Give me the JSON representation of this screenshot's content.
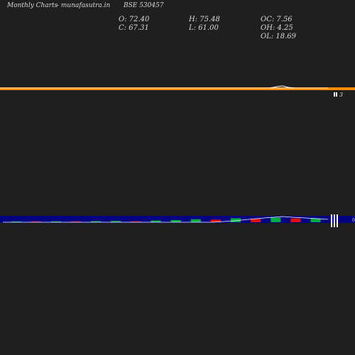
{
  "header": {
    "chart_kind": "Monthly Charts",
    "site": "- munafasutra.in",
    "symbol": "BSE 530457"
  },
  "ohlc": {
    "open": "O: 72.40",
    "close": "C: 67.31",
    "high": "H: 75.48",
    "low": "L: 61.00",
    "oc": "OC: 7.56",
    "oh": "OH: 4.25",
    "ol": "OL: 18.69"
  },
  "colors": {
    "background": "#1f1f1f",
    "price_band": "#ff8c00",
    "volume_band": "#000080",
    "up": "#00aa44",
    "down": "#dd1111",
    "line": "#ffffff"
  },
  "chart_data": [
    {
      "type": "line",
      "panel": "price",
      "title": "",
      "xlabel": "",
      "ylabel": "",
      "price_line_flat_end_value": 67.31,
      "right_axis_labels": [
        "3"
      ]
    },
    {
      "type": "bar",
      "panel": "volume",
      "title": "",
      "xlabel": "",
      "ylabel": "",
      "right_axis_labels": [
        "0"
      ],
      "candles": [
        {
          "dir": "up",
          "value": 0.3
        },
        {
          "dir": "down",
          "value": 0.2
        },
        {
          "dir": "up",
          "value": 0.4
        },
        {
          "dir": "down",
          "value": 0.3
        },
        {
          "dir": "up",
          "value": 0.5
        },
        {
          "dir": "up",
          "value": 0.6
        },
        {
          "dir": "down",
          "value": 0.4
        },
        {
          "dir": "up",
          "value": 0.8
        },
        {
          "dir": "up",
          "value": 1.0
        },
        {
          "dir": "up",
          "value": 1.4
        },
        {
          "dir": "down",
          "value": 1.2
        },
        {
          "dir": "up",
          "value": 1.9
        },
        {
          "dir": "down",
          "value": 1.6
        },
        {
          "dir": "up",
          "value": 2.2
        },
        {
          "dir": "down",
          "value": 1.8
        },
        {
          "dir": "up",
          "value": 1.7
        }
      ]
    }
  ]
}
